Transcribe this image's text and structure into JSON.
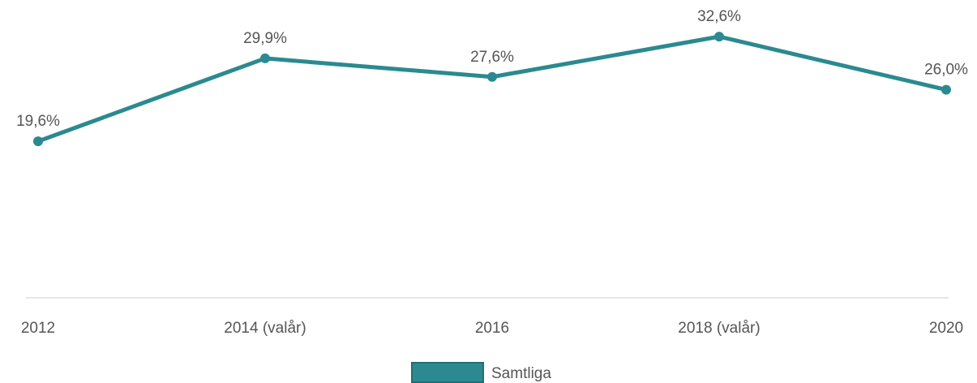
{
  "chart_data": {
    "type": "line",
    "categories": [
      "2012",
      "2014 (valår)",
      "2016",
      "2018 (valår)",
      "2020"
    ],
    "series": [
      {
        "name": "Samtliga",
        "color": "#2b8a90",
        "values": [
          19.6,
          29.9,
          27.6,
          32.6,
          26.0
        ],
        "value_labels": [
          "19,6%",
          "29,9%",
          "27,6%",
          "32,6%",
          "26,0%"
        ]
      }
    ],
    "ylim": [
      0,
      37
    ],
    "legend": "bottom"
  }
}
